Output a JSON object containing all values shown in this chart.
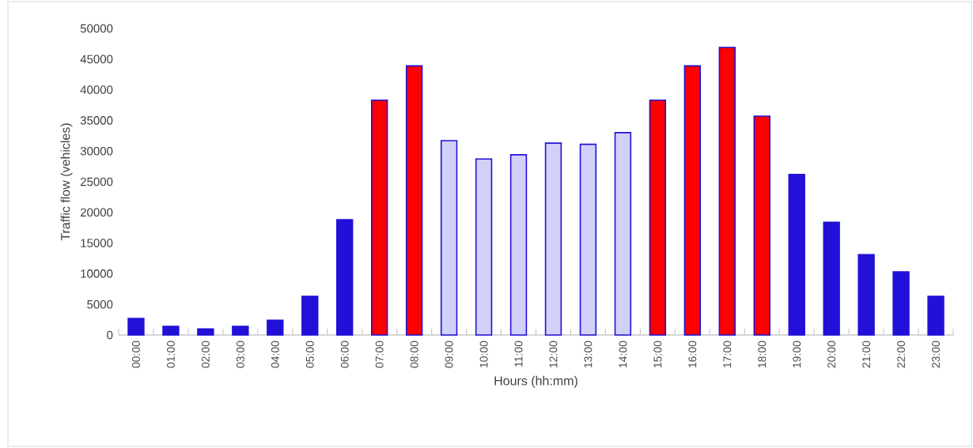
{
  "chart_data": {
    "type": "bar",
    "xlabel": "Hours (hh:mm)",
    "ylabel": "Traffic flow (vehicles)",
    "categories": [
      "00:00",
      "01:00",
      "02:00",
      "03:00",
      "04:00",
      "05:00",
      "06:00",
      "07:00",
      "08:00",
      "09:00",
      "10:00",
      "11:00",
      "12:00",
      "13:00",
      "14:00",
      "15:00",
      "16:00",
      "17:00",
      "18:00",
      "19:00",
      "20:00",
      "21:00",
      "22:00",
      "23:00"
    ],
    "values": [
      2700,
      1400,
      1000,
      1400,
      2400,
      6300,
      18800,
      38300,
      43900,
      31700,
      28700,
      29400,
      31300,
      31100,
      33000,
      38300,
      43900,
      46900,
      35700,
      26200,
      18400,
      13100,
      10300,
      6300
    ],
    "color": "#2010d8",
    "colors": [
      "#2010d8",
      "#2010d8",
      "#2010d8",
      "#2010d8",
      "#2010d8",
      "#2010d8",
      "#2010d8",
      "#ff0000",
      "#ff0000",
      "#d0d0f8",
      "#d0d0f8",
      "#d0d0f8",
      "#d0d0f8",
      "#d0d0f8",
      "#d0d0f8",
      "#ff0000",
      "#ff0000",
      "#ff0000",
      "#ff0000",
      "#2010d8",
      "#2010d8",
      "#2010d8",
      "#2010d8",
      "#2010d8"
    ],
    "ylim": [
      0,
      50000
    ],
    "yticks": [
      0,
      5000,
      10000,
      15000,
      20000,
      25000,
      30000,
      35000,
      40000,
      45000,
      50000
    ]
  }
}
